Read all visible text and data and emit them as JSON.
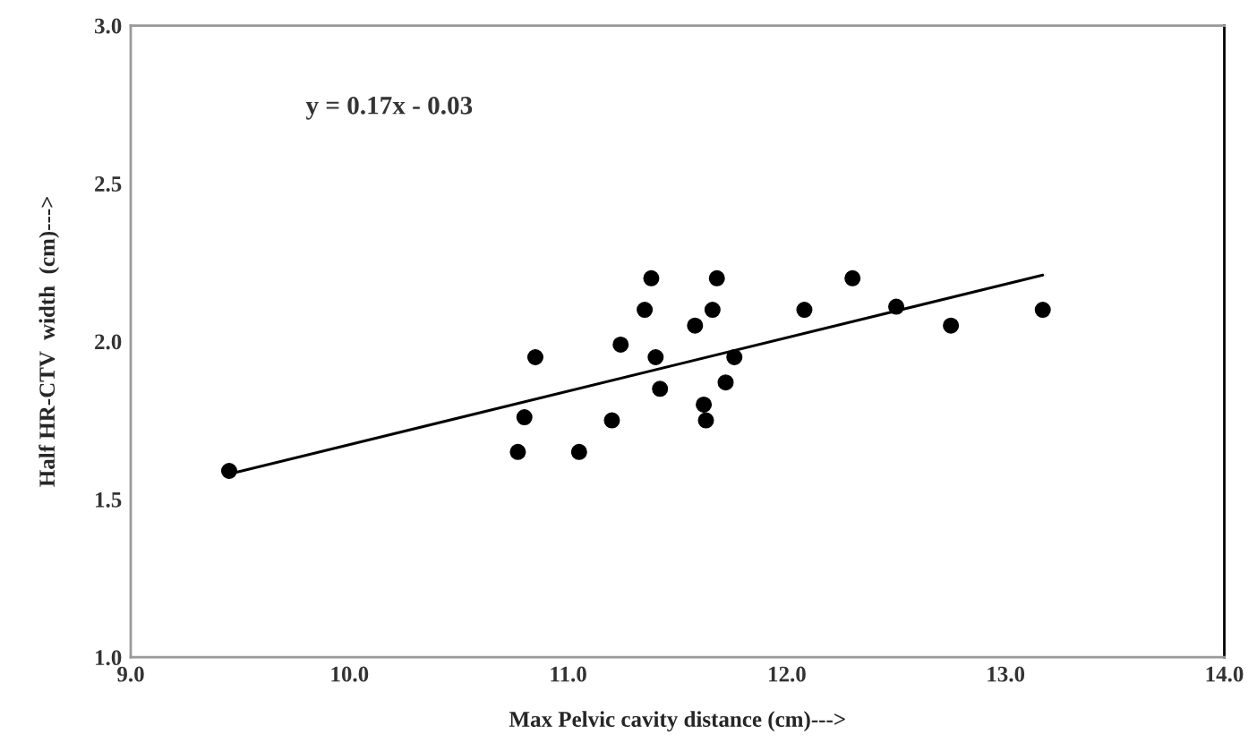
{
  "chart_data": {
    "type": "scatter",
    "xlabel": "Max Pelvic cavity distance (cm)--->",
    "ylabel": "Half HR-CTV  width  (cm)--->",
    "annotations": [
      "y = 0.17x - 0.03"
    ],
    "series": [
      {
        "color": "#000000",
        "marker": "circle",
        "x": [
          9.45,
          10.77,
          10.8,
          10.85,
          11.05,
          11.2,
          11.24,
          11.35,
          11.38,
          11.4,
          11.42,
          11.58,
          11.62,
          11.63,
          11.66,
          11.68,
          11.72,
          11.76,
          12.08,
          12.3,
          12.5,
          12.75,
          13.17
        ],
        "values": [
          1.59,
          1.65,
          1.76,
          1.95,
          1.65,
          1.75,
          1.99,
          2.1,
          2.2,
          1.95,
          1.85,
          2.05,
          1.8,
          1.75,
          2.1,
          2.2,
          1.87,
          1.95,
          2.1,
          2.2,
          2.11,
          2.05,
          2.1
        ]
      },
      {
        "type": "line",
        "color": "#000000",
        "x": [
          9.45,
          13.17
        ],
        "values": [
          1.58,
          2.21
        ]
      }
    ],
    "xlim": [
      9.0,
      14.0
    ],
    "ylim": [
      1.0,
      3.0
    ],
    "xticks": [
      {
        "value": 9,
        "label": "9.0"
      },
      {
        "value": 10,
        "label": "10.0"
      },
      {
        "value": 11,
        "label": "11.0"
      },
      {
        "value": 12,
        "label": "12.0"
      },
      {
        "value": 13,
        "label": "13.0"
      },
      {
        "value": 14,
        "label": "14.0"
      }
    ],
    "yticks": [
      {
        "value": 1,
        "label": "1.0"
      },
      {
        "value": 1.5,
        "label": "1.5"
      },
      {
        "value": 2,
        "label": "2.0"
      },
      {
        "value": 2.5,
        "label": "2.5"
      },
      {
        "value": 3,
        "label": "3.0"
      }
    ],
    "grid": false,
    "legend": false
  }
}
